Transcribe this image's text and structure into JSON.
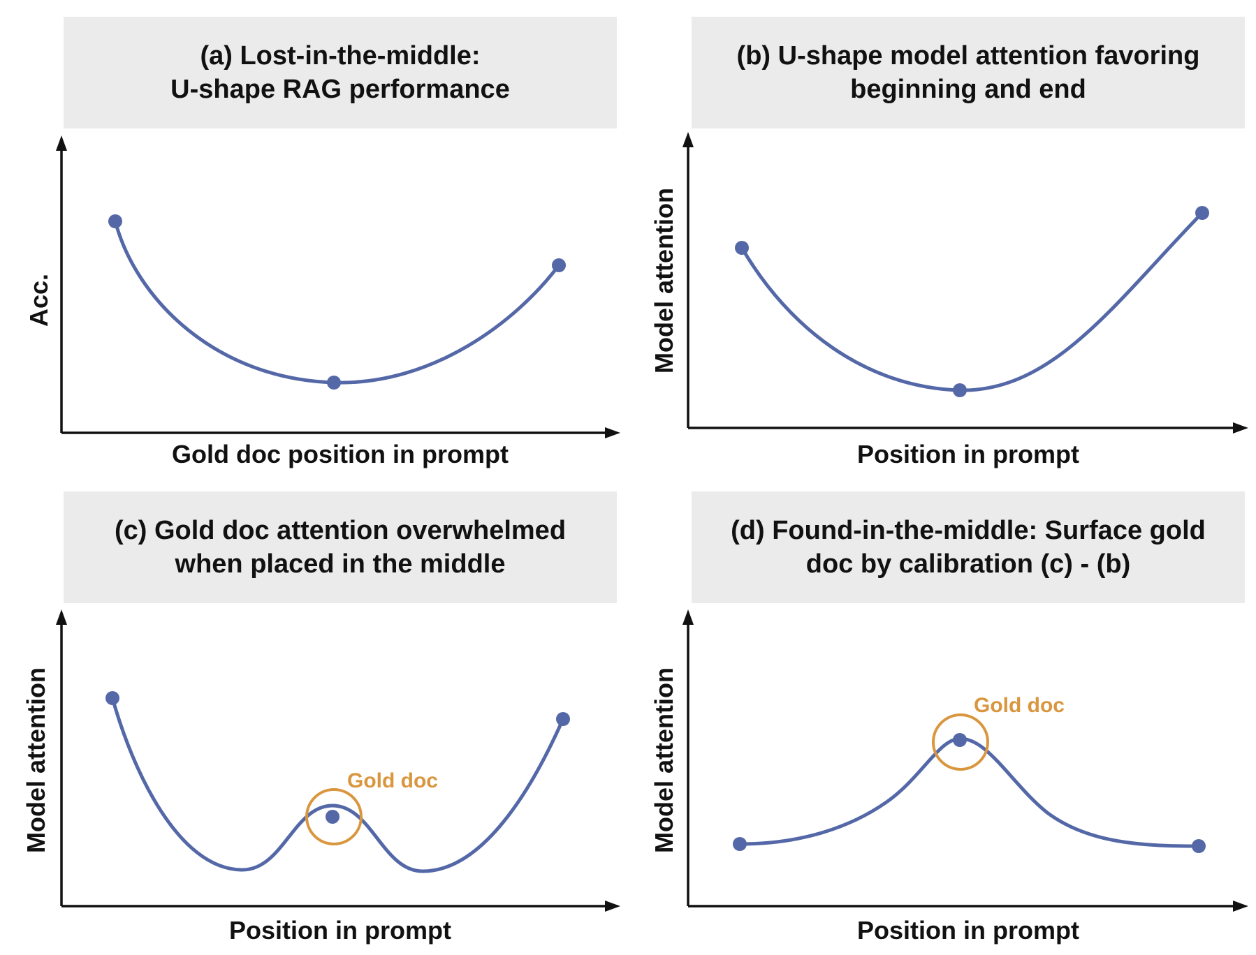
{
  "figure": {
    "panels": [
      {
        "id": "a",
        "title_lines": [
          "(a) Lost-in-the-middle:",
          "U-shape RAG performance"
        ],
        "xlabel": "Gold doc position in prompt",
        "ylabel": "Acc."
      },
      {
        "id": "b",
        "title_lines": [
          "(b) U-shape model attention favoring",
          "beginning and end"
        ],
        "xlabel": "Position in prompt",
        "ylabel": "Model attention"
      },
      {
        "id": "c",
        "title_lines": [
          "(c) Gold doc attention overwhelmed",
          "when placed in the middle"
        ],
        "xlabel": "Position in prompt",
        "ylabel": "Model attention",
        "annotation": "Gold doc"
      },
      {
        "id": "d",
        "title_lines": [
          "(d) Found-in-the-middle: Surface gold",
          "doc by calibration (c) - (b)"
        ],
        "xlabel": "Position in prompt",
        "ylabel": "Model attention",
        "annotation": "Gold doc"
      }
    ],
    "colors": {
      "curve": "#5468a8",
      "highlight": "#d9963e",
      "title_bg": "#ebebeb",
      "axis": "#111111"
    }
  }
}
